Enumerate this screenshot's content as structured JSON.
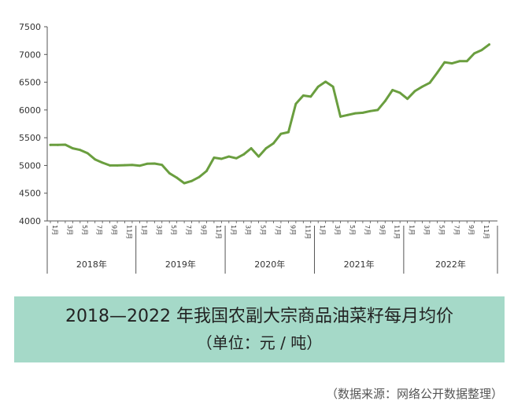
{
  "title": "2018—2022 年我国农副大宗商品油菜籽每月均价",
  "subtitle": "（单位：元 / 吨）",
  "source": "（数据来源：网络公开数据整理）",
  "colors": {
    "line": "#6a9e3f",
    "title_bg": "#a5d9c8",
    "axis": "#555555"
  },
  "chart_data": {
    "type": "line",
    "title": "2018—2022 年我国农副大宗商品油菜籽每月均价",
    "ylabel": "元 / 吨",
    "ylim": [
      4000,
      7500
    ],
    "yticks": [
      "4000",
      "4500",
      "5000",
      "5500",
      "6000",
      "6500",
      "7000",
      "7500"
    ],
    "grid": false,
    "month_labels": [
      "1月",
      "3月",
      "5月",
      "7月",
      "9月",
      "11月"
    ],
    "years": [
      "2018年",
      "2019年",
      "2020年",
      "2021年",
      "2022年"
    ],
    "series": [
      {
        "values": [
          5370,
          5370,
          5375,
          5310,
          5280,
          5220,
          5110,
          5050,
          5000,
          5000,
          5005,
          5010,
          4995,
          5030,
          5035,
          5010,
          4860,
          4780,
          4680,
          4720,
          4790,
          4900,
          5140,
          5120,
          5160,
          5130,
          5200,
          5310,
          5160,
          5310,
          5400,
          5570,
          5600,
          6110,
          6260,
          6240,
          6420,
          6510,
          6420,
          5880,
          5910,
          5940,
          5950,
          5980,
          6000,
          6160,
          6360,
          6310,
          6200,
          6340,
          6420,
          6490,
          6670,
          6860,
          6840,
          6880,
          6880,
          7020,
          7080,
          7180
        ]
      }
    ]
  }
}
